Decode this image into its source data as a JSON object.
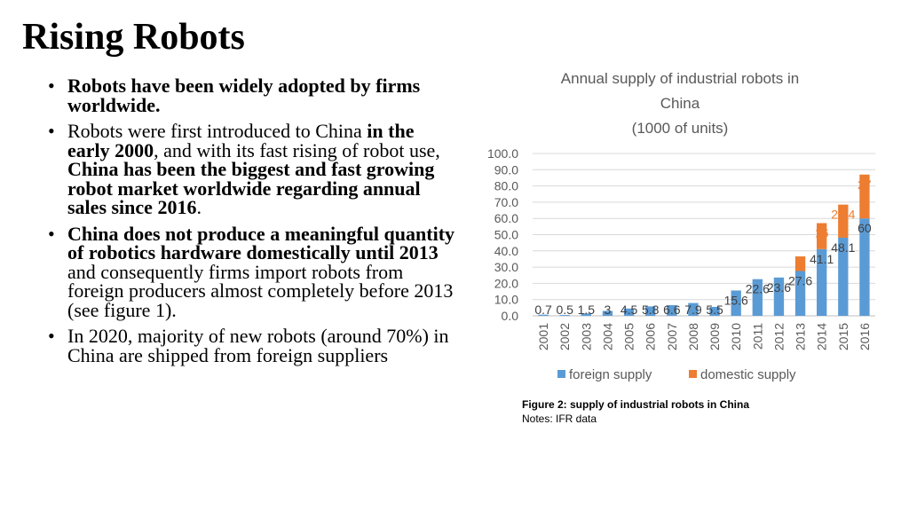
{
  "slide": {
    "title": "Rising Robots",
    "bullets": [
      {
        "segments": [
          {
            "text": "Robots have been widely adopted by firms worldwide.",
            "bold": true
          }
        ]
      },
      {
        "segments": [
          {
            "text": "Robots were first introduced to China ",
            "bold": false
          },
          {
            "text": "in the early 2000",
            "bold": true
          },
          {
            "text": ", and with its fast rising of robot use, ",
            "bold": false
          },
          {
            "text": "China has been the biggest and fast growing robot market worldwide regarding annual sales since 2016",
            "bold": true
          },
          {
            "text": ".",
            "bold": false
          }
        ]
      },
      {
        "segments": [
          {
            "text": "China does not produce a meaningful quantity of robotics hardware domestically until 2013",
            "bold": true
          },
          {
            "text": " and consequently firms import robots from foreign producers almost completely before 2013 (see figure 1).",
            "bold": false
          }
        ]
      },
      {
        "segments": [
          {
            "text": "In 2020, majority of new robots (around 70%) in China are shipped from foreign suppliers",
            "bold": false
          }
        ]
      }
    ]
  },
  "figure": {
    "caption_title": "Figure 2: supply of industrial robots in China",
    "caption_note": "Notes: IFR data"
  },
  "chart_data": {
    "type": "bar",
    "stacked": true,
    "title_lines": [
      "Annual supply of industrial robots in",
      "China",
      "(1000 of units)"
    ],
    "categories": [
      "2001",
      "2002",
      "2003",
      "2004",
      "2005",
      "2006",
      "2007",
      "2008",
      "2009",
      "2010",
      "2011",
      "2012",
      "2013",
      "2014",
      "2015",
      "2016"
    ],
    "series": [
      {
        "name": "foreign supply",
        "color": "#5B9BD5",
        "values": [
          0.7,
          0.5,
          1.5,
          3,
          4.5,
          5.8,
          6.6,
          7.9,
          5.5,
          15.6,
          22.6,
          23.6,
          27.6,
          41.1,
          48.1,
          60
        ],
        "labels": [
          "0.7",
          "0.5",
          "1.5",
          "3",
          "4.5",
          "5.8",
          "6.6",
          "7.9",
          "5.5",
          "15.6",
          "22.6",
          "23.6",
          "27.6",
          "41.1",
          "48.1",
          "60"
        ]
      },
      {
        "name": "domestic supply",
        "color": "#ED7D31",
        "values": [
          0,
          0,
          0,
          0,
          0,
          0,
          0,
          0,
          0,
          0,
          0,
          0,
          9,
          16,
          20.4,
          27
        ],
        "labels": [
          "",
          "",
          "",
          "",
          "",
          "",
          "",
          "",
          "",
          "",
          "",
          "",
          "9",
          "16",
          "20.4",
          "27"
        ]
      }
    ],
    "ylim": [
      0,
      100
    ],
    "yticks": [
      "0.0",
      "10.0",
      "20.0",
      "30.0",
      "40.0",
      "50.0",
      "60.0",
      "70.0",
      "80.0",
      "90.0",
      "100.0"
    ],
    "grid": true,
    "legend_position": "bottom",
    "xlabel": "",
    "ylabel": ""
  }
}
